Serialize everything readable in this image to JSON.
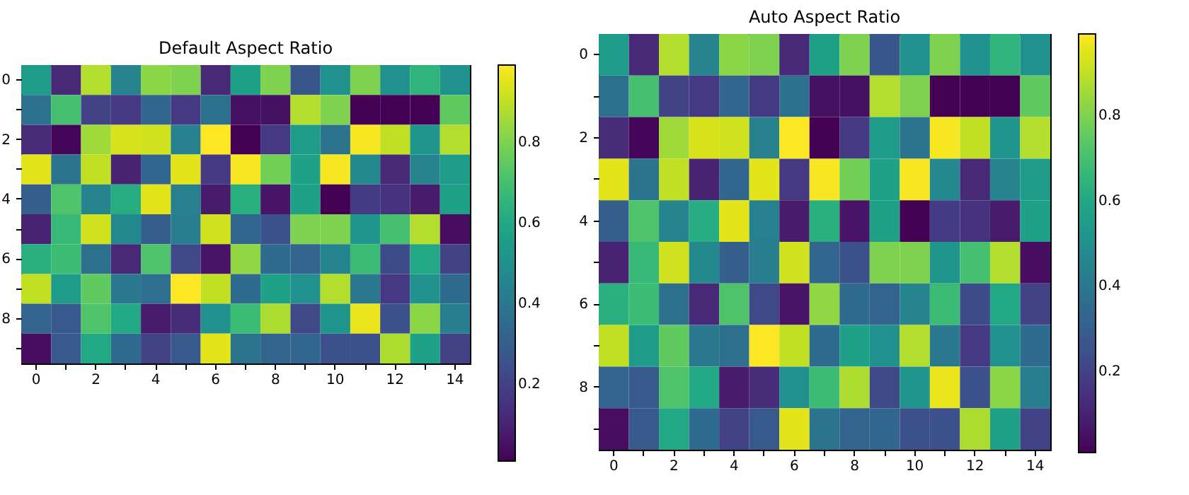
{
  "chart_data": [
    {
      "type": "heatmap",
      "title": "Default Aspect Ratio",
      "categories": [
        "0",
        null,
        "2",
        null,
        "4",
        null,
        "6",
        null,
        "8",
        null,
        "10",
        null,
        "12",
        null,
        "14"
      ],
      "y_categories": [
        "0",
        null,
        "2",
        null,
        "4",
        null,
        "6",
        null,
        "8",
        null
      ],
      "cells": [
        [
          0.55,
          0.12,
          0.88,
          0.45,
          0.82,
          0.8,
          0.12,
          0.57,
          0.8,
          0.27,
          0.5,
          0.8,
          0.5,
          0.65,
          0.5
        ],
        [
          0.37,
          0.7,
          0.2,
          0.17,
          0.33,
          0.17,
          0.37,
          0.05,
          0.05,
          0.88,
          0.8,
          0.01,
          0.01,
          0.01,
          0.75
        ],
        [
          0.13,
          0.02,
          0.85,
          0.93,
          0.92,
          0.43,
          0.99,
          0.01,
          0.17,
          0.55,
          0.38,
          0.98,
          0.9,
          0.52,
          0.88
        ],
        [
          0.95,
          0.38,
          0.9,
          0.1,
          0.33,
          0.95,
          0.17,
          0.98,
          0.78,
          0.57,
          0.98,
          0.47,
          0.12,
          0.45,
          0.55
        ],
        [
          0.3,
          0.72,
          0.45,
          0.62,
          0.95,
          0.43,
          0.08,
          0.63,
          0.06,
          0.57,
          0.01,
          0.18,
          0.15,
          0.08,
          0.57
        ],
        [
          0.1,
          0.67,
          0.92,
          0.47,
          0.3,
          0.42,
          0.92,
          0.33,
          0.25,
          0.8,
          0.8,
          0.52,
          0.7,
          0.88,
          0.04
        ],
        [
          0.63,
          0.68,
          0.37,
          0.12,
          0.72,
          0.22,
          0.06,
          0.83,
          0.35,
          0.32,
          0.45,
          0.68,
          0.23,
          0.6,
          0.2
        ],
        [
          0.9,
          0.55,
          0.75,
          0.4,
          0.36,
          0.99,
          0.9,
          0.35,
          0.57,
          0.5,
          0.88,
          0.4,
          0.17,
          0.5,
          0.35
        ],
        [
          0.32,
          0.28,
          0.72,
          0.6,
          0.08,
          0.13,
          0.5,
          0.68,
          0.87,
          0.22,
          0.52,
          0.96,
          0.25,
          0.82,
          0.42
        ],
        [
          0.04,
          0.28,
          0.6,
          0.35,
          0.2,
          0.28,
          0.95,
          0.38,
          0.32,
          0.33,
          0.25,
          0.25,
          0.87,
          0.57,
          0.2
        ]
      ],
      "clim": [
        0.01,
        0.99
      ],
      "cticks": [
        0.2,
        0.4,
        0.6,
        0.8
      ]
    },
    {
      "type": "heatmap",
      "title": "Auto Aspect Ratio",
      "categories": [
        "0",
        null,
        "2",
        null,
        "4",
        null,
        "6",
        null,
        "8",
        null,
        "10",
        null,
        "12",
        null,
        "14"
      ],
      "y_categories": [
        "0",
        null,
        "2",
        null,
        "4",
        null,
        "6",
        null,
        "8",
        null
      ],
      "cells": [
        [
          0.55,
          0.12,
          0.88,
          0.45,
          0.82,
          0.8,
          0.12,
          0.57,
          0.8,
          0.27,
          0.5,
          0.8,
          0.5,
          0.65,
          0.5
        ],
        [
          0.37,
          0.7,
          0.2,
          0.17,
          0.33,
          0.17,
          0.37,
          0.05,
          0.05,
          0.88,
          0.8,
          0.01,
          0.01,
          0.01,
          0.75
        ],
        [
          0.13,
          0.02,
          0.85,
          0.93,
          0.92,
          0.43,
          0.99,
          0.01,
          0.17,
          0.55,
          0.38,
          0.98,
          0.9,
          0.52,
          0.88
        ],
        [
          0.95,
          0.38,
          0.9,
          0.1,
          0.33,
          0.95,
          0.17,
          0.98,
          0.78,
          0.57,
          0.98,
          0.47,
          0.12,
          0.45,
          0.55
        ],
        [
          0.3,
          0.72,
          0.45,
          0.62,
          0.95,
          0.43,
          0.08,
          0.63,
          0.06,
          0.57,
          0.01,
          0.18,
          0.15,
          0.08,
          0.57
        ],
        [
          0.1,
          0.67,
          0.92,
          0.47,
          0.3,
          0.42,
          0.92,
          0.33,
          0.25,
          0.8,
          0.8,
          0.52,
          0.7,
          0.88,
          0.04
        ],
        [
          0.63,
          0.68,
          0.37,
          0.12,
          0.72,
          0.22,
          0.06,
          0.83,
          0.35,
          0.32,
          0.45,
          0.68,
          0.23,
          0.6,
          0.2
        ],
        [
          0.9,
          0.55,
          0.75,
          0.4,
          0.36,
          0.99,
          0.9,
          0.35,
          0.57,
          0.5,
          0.88,
          0.4,
          0.17,
          0.5,
          0.35
        ],
        [
          0.32,
          0.28,
          0.72,
          0.6,
          0.08,
          0.13,
          0.5,
          0.68,
          0.87,
          0.22,
          0.52,
          0.96,
          0.25,
          0.82,
          0.42
        ],
        [
          0.04,
          0.28,
          0.6,
          0.35,
          0.2,
          0.28,
          0.95,
          0.38,
          0.32,
          0.33,
          0.25,
          0.25,
          0.87,
          0.57,
          0.2
        ]
      ],
      "clim": [
        0.01,
        0.99
      ],
      "cticks": [
        0.2,
        0.4,
        0.6,
        0.8
      ]
    }
  ]
}
